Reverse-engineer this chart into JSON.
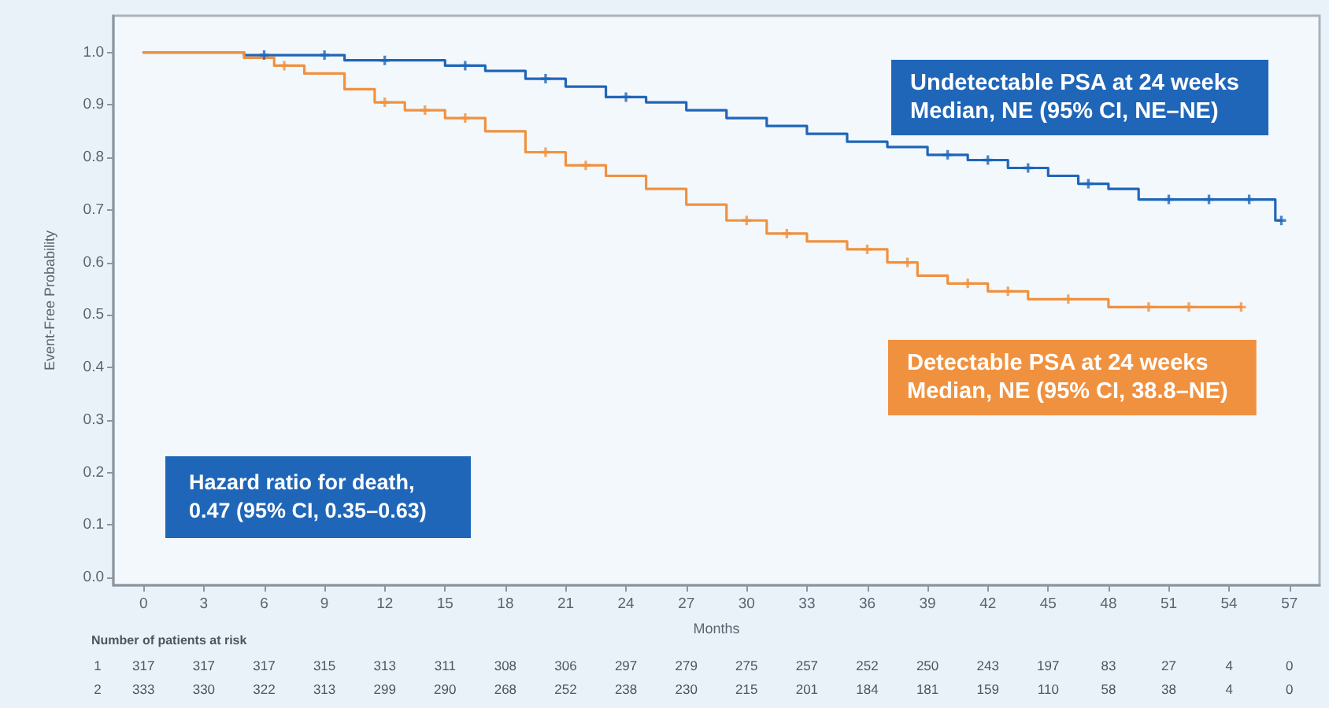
{
  "chart_data": {
    "type": "step",
    "ylabel": "Event-Free Probability",
    "xlabel": "Months",
    "xlim": [
      -1.5,
      58.5
    ],
    "ylim": [
      -0.015,
      1.07
    ],
    "xticks": [
      0,
      3,
      6,
      9,
      12,
      15,
      18,
      21,
      24,
      27,
      30,
      33,
      36,
      39,
      42,
      45,
      48,
      51,
      54,
      57
    ],
    "yticks": [
      {
        "value": 0,
        "label": "0.0"
      },
      0.1,
      0.2,
      0.3,
      0.4,
      0.5,
      0.6,
      0.7,
      0.8,
      0.9,
      {
        "value": 1,
        "label": "1.0"
      }
    ],
    "series": [
      {
        "name": "Undetectable PSA at 24 weeks",
        "color": "#1f66b8",
        "x": [
          0,
          5,
          10,
          15,
          17,
          19,
          21,
          23,
          25,
          27,
          29,
          31,
          33,
          35,
          37,
          39,
          41,
          43,
          45,
          46.5,
          48,
          49.5,
          56.3,
          56.6
        ],
        "values": [
          1,
          0.995,
          0.985,
          0.975,
          0.965,
          0.95,
          0.935,
          0.915,
          0.905,
          0.89,
          0.875,
          0.86,
          0.845,
          0.83,
          0.82,
          0.805,
          0.795,
          0.78,
          0.765,
          0.75,
          0.74,
          0.72,
          0.68,
          0.68
        ]
      },
      {
        "name": "Detectable PSA at 24 weeks",
        "color": "#f0913f",
        "x": [
          0,
          5,
          6.5,
          8,
          10,
          11.5,
          13,
          15,
          17,
          19,
          21,
          23,
          25,
          27,
          29,
          31,
          33,
          35,
          37,
          38.5,
          40,
          42,
          44,
          48,
          54.6
        ],
        "values": [
          1,
          0.99,
          0.975,
          0.96,
          0.93,
          0.905,
          0.89,
          0.875,
          0.85,
          0.81,
          0.785,
          0.765,
          0.74,
          0.71,
          0.68,
          0.655,
          0.64,
          0.625,
          0.6,
          0.575,
          0.56,
          0.545,
          0.53,
          0.515,
          0.515
        ]
      },
      {
        "type": "scatter",
        "marker": "cross",
        "color": "#1f66b8",
        "x": [
          6,
          9,
          12,
          16,
          20,
          24,
          40,
          42,
          44,
          47,
          51,
          53,
          55,
          56.6
        ],
        "values": [
          0.995,
          0.995,
          0.985,
          0.975,
          0.95,
          0.915,
          0.805,
          0.795,
          0.78,
          0.75,
          0.72,
          0.72,
          0.72,
          0.68
        ]
      },
      {
        "type": "scatter",
        "marker": "cross",
        "color": "#f0913f",
        "x": [
          7,
          12,
          14,
          16,
          20,
          22,
          30,
          32,
          36,
          38,
          41,
          43,
          46,
          50,
          52,
          54.6
        ],
        "values": [
          0.975,
          0.905,
          0.89,
          0.875,
          0.81,
          0.785,
          0.68,
          0.655,
          0.625,
          0.6,
          0.56,
          0.545,
          0.53,
          0.515,
          0.515,
          0.515
        ]
      }
    ],
    "annotations": [
      "Median, NE (95% CI, NE–NE)",
      "Median, NE (95% CI, 38.8–NE)",
      "Hazard ratio for death, 0.47 (95% CI, 0.35–0.63)",
      "Number of patients at risk",
      "1 317 317 317 315 313 311 308 306 297 279 275 257 252 250 243 197 83 27 4 0",
      "2 333 330 322 313 299 290 268 252 238 230 215 201 184 181 159 110 58 38 4 0"
    ]
  }
}
